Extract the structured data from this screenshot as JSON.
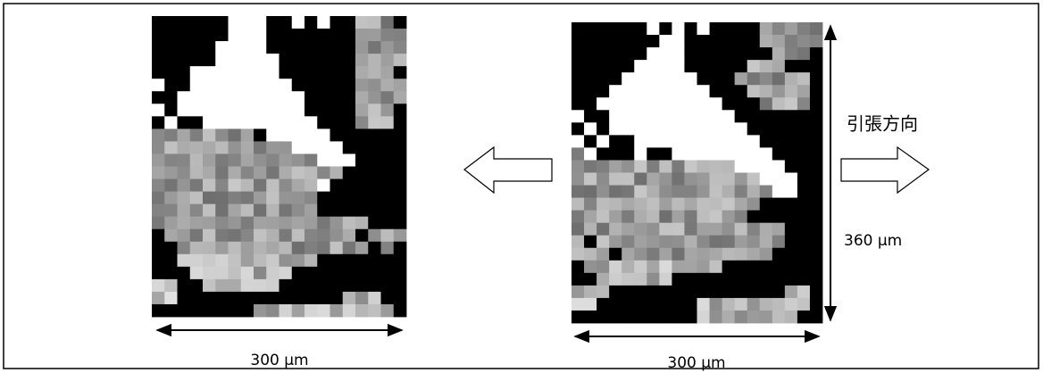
{
  "left_image": {
    "width_label": "300 μm"
  },
  "right_image": {
    "width_label": "300 μm",
    "height_label": "360 μm"
  },
  "direction_label": "引張方向"
}
